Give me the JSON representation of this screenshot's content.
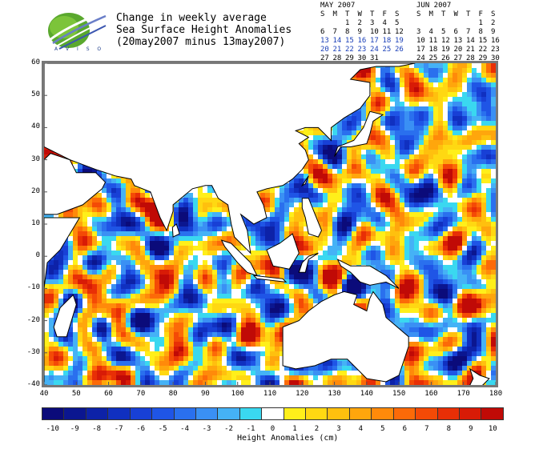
{
  "logo": {
    "name": "AVISO",
    "text": "A V I S O"
  },
  "title": {
    "line1": "Change in weekly average",
    "line2": "Sea Surface Height Anomalies",
    "line3": "(20may2007 minus 13may2007)"
  },
  "calendars": [
    {
      "title": "MAY 2007",
      "headers": [
        "S",
        "M",
        "T",
        "W",
        "T",
        "F",
        "S"
      ],
      "rows": [
        [
          "",
          "",
          "1",
          "2",
          "3",
          "4",
          "5"
        ],
        [
          "6",
          "7",
          "8",
          "9",
          "10",
          "11",
          "12"
        ],
        [
          "13",
          "14",
          "15",
          "16",
          "17",
          "18",
          "19"
        ],
        [
          "20",
          "21",
          "22",
          "23",
          "24",
          "25",
          "26"
        ],
        [
          "27",
          "28",
          "29",
          "30",
          "31",
          "",
          ""
        ]
      ],
      "highlight_rows": [
        2,
        3
      ]
    },
    {
      "title": "JUN 2007",
      "headers": [
        "S",
        "M",
        "T",
        "W",
        "T",
        "F",
        "S"
      ],
      "rows": [
        [
          "",
          "",
          "",
          "",
          "",
          "1",
          "2"
        ],
        [
          "3",
          "4",
          "5",
          "6",
          "7",
          "8",
          "9"
        ],
        [
          "10",
          "11",
          "12",
          "13",
          "14",
          "15",
          "16"
        ],
        [
          "17",
          "18",
          "19",
          "20",
          "21",
          "22",
          "23"
        ],
        [
          "24",
          "25",
          "26",
          "27",
          "28",
          "29",
          "30"
        ]
      ],
      "highlight_rows": []
    }
  ],
  "map": {
    "lon_range": [
      40,
      180
    ],
    "lat_range": [
      -40,
      60
    ],
    "x_ticks": [
      "40",
      "50",
      "60",
      "70",
      "80",
      "90",
      "100",
      "110",
      "120",
      "130",
      "140",
      "150",
      "160",
      "170",
      "180"
    ],
    "y_ticks": [
      "60",
      "50",
      "40",
      "30",
      "20",
      "10",
      "0",
      "-10",
      "-20",
      "-30",
      "-40"
    ],
    "land_color": "#ffffff",
    "coast_color": "#000000"
  },
  "colorbar": {
    "title": "Height Anomalies (cm)",
    "labels": [
      "-10",
      "-9",
      "-8",
      "-7",
      "-6",
      "-5",
      "-4",
      "-3",
      "-2",
      "-1",
      "0",
      "1",
      "2",
      "3",
      "4",
      "5",
      "6",
      "7",
      "8",
      "9",
      "10"
    ],
    "colors": [
      "#0b0b7a",
      "#0b1690",
      "#0d22a8",
      "#1030c0",
      "#1840d6",
      "#1f55e6",
      "#2a70ee",
      "#3a90f4",
      "#45b2f6",
      "#3ad8f0",
      "#ffffff",
      "#ffef1a",
      "#ffd812",
      "#ffc00e",
      "#ffa60c",
      "#ff8a0a",
      "#fc6a08",
      "#f44a06",
      "#e82f06",
      "#d81b06",
      "#c00a06"
    ]
  }
}
